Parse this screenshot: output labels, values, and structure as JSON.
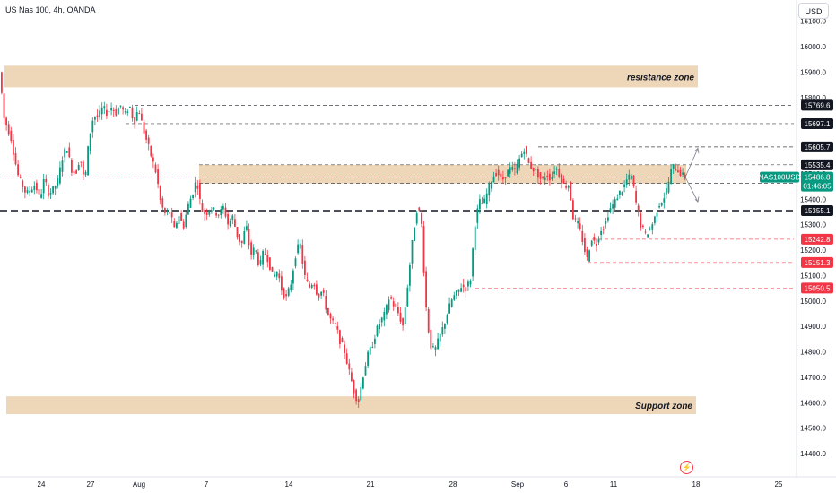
{
  "header": {
    "title": "US Nas 100, 4h, OANDA",
    "currency": "USD"
  },
  "chart_data": {
    "type": "candlestick",
    "symbol": "NAS100USD",
    "ylim": [
      14350,
      16150
    ],
    "y_ticks": [
      "16100.0",
      "16000.0",
      "15900.0",
      "15800.0",
      "15700.0",
      "15600.0",
      "15500.0",
      "15400.0",
      "15300.0",
      "15200.0",
      "15100.0",
      "15000.0",
      "14900.0",
      "14800.0",
      "14700.0",
      "14600.0",
      "14500.0",
      "14400.0"
    ],
    "x_tick_labels": [
      "24",
      "27",
      "Aug",
      "7",
      "14",
      "21",
      "28",
      "Sep",
      "6",
      "11",
      "18",
      "25"
    ],
    "zones": [
      {
        "label": "resistance zone",
        "low": 15840,
        "high": 15925
      },
      {
        "label": "Support zone",
        "low": 14555,
        "high": 14625
      }
    ],
    "price_levels": [
      {
        "value": "15769.6",
        "color": "#131722",
        "line": "dashed"
      },
      {
        "value": "15697.1",
        "color": "#131722",
        "line": "dashed"
      },
      {
        "value": "15605.7",
        "color": "#131722",
        "line": "dashed"
      },
      {
        "value": "15535.4",
        "color": "#131722",
        "line": "dashed"
      },
      {
        "value": "15462.9",
        "color": "#131722",
        "line": "dashed"
      },
      {
        "value": "15355.1",
        "color": "#131722",
        "line": "bold-dashed"
      },
      {
        "value": "15242.8",
        "color": "#f23645",
        "line": "dashed"
      },
      {
        "value": "15151.3",
        "color": "#f23645",
        "line": "dashed"
      },
      {
        "value": "15050.5",
        "color": "#f23645",
        "line": "dashed"
      }
    ],
    "current_price": {
      "symbol": "NAS100USD",
      "price": "15486.8",
      "countdown": "01:46:05",
      "color": "#089981"
    },
    "path": [
      [
        0,
        15930
      ],
      [
        3,
        15840
      ],
      [
        6,
        15720
      ],
      [
        9,
        15690
      ],
      [
        14,
        15640
      ],
      [
        18,
        15560
      ],
      [
        22,
        15490
      ],
      [
        26,
        15460
      ],
      [
        31,
        15420
      ],
      [
        36,
        15440
      ],
      [
        41,
        15460
      ],
      [
        46,
        15400
      ],
      [
        51,
        15480
      ],
      [
        56,
        15420
      ],
      [
        61,
        15440
      ],
      [
        66,
        15470
      ],
      [
        71,
        15560
      ],
      [
        76,
        15610
      ],
      [
        81,
        15520
      ],
      [
        86,
        15500
      ],
      [
        91,
        15570
      ],
      [
        96,
        15460
      ],
      [
        101,
        15640
      ],
      [
        106,
        15730
      ],
      [
        111,
        15720
      ],
      [
        116,
        15760
      ],
      [
        121,
        15740
      ],
      [
        126,
        15760
      ],
      [
        131,
        15740
      ],
      [
        136,
        15770
      ],
      [
        141,
        15730
      ],
      [
        146,
        15770
      ],
      [
        151,
        15700
      ],
      [
        156,
        15760
      ],
      [
        161,
        15680
      ],
      [
        166,
        15620
      ],
      [
        171,
        15560
      ],
      [
        176,
        15500
      ],
      [
        181,
        15380
      ],
      [
        186,
        15340
      ],
      [
        191,
        15350
      ],
      [
        196,
        15280
      ],
      [
        201,
        15340
      ],
      [
        206,
        15290
      ],
      [
        211,
        15370
      ],
      [
        216,
        15420
      ],
      [
        221,
        15480
      ],
      [
        226,
        15360
      ],
      [
        231,
        15340
      ],
      [
        236,
        15370
      ],
      [
        241,
        15350
      ],
      [
        246,
        15340
      ],
      [
        251,
        15370
      ],
      [
        256,
        15300
      ],
      [
        261,
        15330
      ],
      [
        266,
        15260
      ],
      [
        271,
        15220
      ],
      [
        276,
        15300
      ],
      [
        281,
        15180
      ],
      [
        286,
        15210
      ],
      [
        291,
        15130
      ],
      [
        296,
        15200
      ],
      [
        301,
        15160
      ],
      [
        306,
        15090
      ],
      [
        311,
        15120
      ],
      [
        316,
        15040
      ],
      [
        321,
        15010
      ],
      [
        326,
        15070
      ],
      [
        331,
        15180
      ],
      [
        336,
        15230
      ],
      [
        341,
        15100
      ],
      [
        346,
        15050
      ],
      [
        351,
        15080
      ],
      [
        356,
        15020
      ],
      [
        361,
        15040
      ],
      [
        366,
        14960
      ],
      [
        371,
        14920
      ],
      [
        376,
        14900
      ],
      [
        381,
        14840
      ],
      [
        386,
        14800
      ],
      [
        391,
        14720
      ],
      [
        396,
        14650
      ],
      [
        401,
        14600
      ],
      [
        406,
        14700
      ],
      [
        411,
        14780
      ],
      [
        416,
        14820
      ],
      [
        421,
        14880
      ],
      [
        426,
        14920
      ],
      [
        431,
        14950
      ],
      [
        436,
        15020
      ],
      [
        441,
        14980
      ],
      [
        446,
        14950
      ],
      [
        451,
        14900
      ],
      [
        456,
        15060
      ],
      [
        461,
        15220
      ],
      [
        466,
        15360
      ],
      [
        471,
        15340
      ],
      [
        476,
        15000
      ],
      [
        481,
        14830
      ],
      [
        486,
        14800
      ],
      [
        491,
        14850
      ],
      [
        496,
        14900
      ],
      [
        501,
        14960
      ],
      [
        506,
        15010
      ],
      [
        511,
        15030
      ],
      [
        516,
        15060
      ],
      [
        521,
        15050
      ],
      [
        526,
        15080
      ],
      [
        531,
        15300
      ],
      [
        536,
        15390
      ],
      [
        541,
        15380
      ],
      [
        546,
        15440
      ],
      [
        551,
        15490
      ],
      [
        556,
        15510
      ],
      [
        561,
        15470
      ],
      [
        566,
        15500
      ],
      [
        571,
        15520
      ],
      [
        576,
        15510
      ],
      [
        581,
        15560
      ],
      [
        586,
        15600
      ],
      [
        591,
        15540
      ],
      [
        596,
        15520
      ],
      [
        601,
        15500
      ],
      [
        606,
        15470
      ],
      [
        611,
        15500
      ],
      [
        616,
        15480
      ],
      [
        621,
        15530
      ],
      [
        626,
        15490
      ],
      [
        631,
        15450
      ],
      [
        636,
        15460
      ],
      [
        641,
        15320
      ],
      [
        646,
        15300
      ],
      [
        651,
        15240
      ],
      [
        656,
        15160
      ],
      [
        661,
        15250
      ],
      [
        666,
        15220
      ],
      [
        671,
        15280
      ],
      [
        676,
        15300
      ],
      [
        681,
        15360
      ],
      [
        686,
        15380
      ],
      [
        691,
        15420
      ],
      [
        696,
        15440
      ],
      [
        701,
        15480
      ],
      [
        706,
        15490
      ],
      [
        711,
        15380
      ],
      [
        716,
        15300
      ],
      [
        721,
        15260
      ],
      [
        726,
        15280
      ],
      [
        731,
        15320
      ],
      [
        736,
        15380
      ],
      [
        741,
        15400
      ],
      [
        746,
        15450
      ],
      [
        751,
        15530
      ],
      [
        756,
        15520
      ],
      [
        761,
        15500
      ],
      [
        764,
        15487
      ]
    ]
  }
}
